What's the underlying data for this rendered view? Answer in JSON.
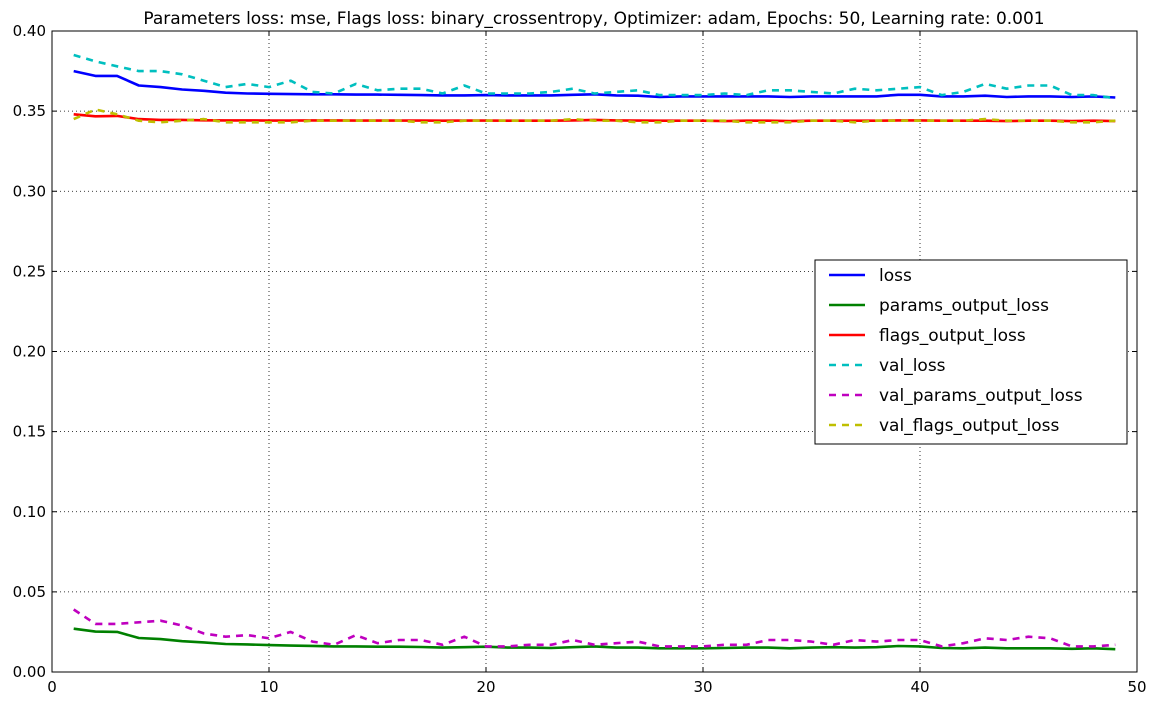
{
  "chart_data": {
    "type": "line",
    "title": "Parameters loss: mse, Flags loss: binary_crossentropy, Optimizer: adam, Epochs: 50, Learning rate: 0.001",
    "xlabel": "",
    "ylabel": "",
    "xlim": [
      0,
      50
    ],
    "ylim": [
      0.0,
      0.4
    ],
    "xticks": [
      "0",
      "10",
      "20",
      "30",
      "40",
      "50"
    ],
    "yticks": [
      "0.00",
      "0.05",
      "0.10",
      "0.15",
      "0.20",
      "0.25",
      "0.30",
      "0.35",
      "0.40"
    ],
    "grid": true,
    "legend_position": "center-right",
    "x": [
      1,
      2,
      3,
      4,
      5,
      6,
      7,
      8,
      9,
      10,
      11,
      12,
      13,
      14,
      15,
      16,
      17,
      18,
      19,
      20,
      21,
      22,
      23,
      24,
      25,
      26,
      27,
      28,
      29,
      30,
      31,
      32,
      33,
      34,
      35,
      36,
      37,
      38,
      39,
      40,
      41,
      42,
      43,
      44,
      45,
      46,
      47,
      48,
      49
    ],
    "series": [
      {
        "name": "loss",
        "color": "#0000ff",
        "style": "solid",
        "values": [
          0.375,
          0.372,
          0.372,
          0.366,
          0.365,
          0.3635,
          0.3627,
          0.3615,
          0.361,
          0.3608,
          0.3606,
          0.3605,
          0.3605,
          0.3603,
          0.3603,
          0.3602,
          0.36,
          0.3598,
          0.3598,
          0.36,
          0.3598,
          0.3598,
          0.3598,
          0.3602,
          0.3605,
          0.3598,
          0.3596,
          0.3588,
          0.3592,
          0.3592,
          0.3592,
          0.3592,
          0.3592,
          0.3588,
          0.3592,
          0.3592,
          0.3592,
          0.3592,
          0.3602,
          0.3602,
          0.3592,
          0.3592,
          0.3596,
          0.3588,
          0.3592,
          0.3592,
          0.3588,
          0.3592,
          0.3585
        ]
      },
      {
        "name": "params_output_loss",
        "color": "#008000",
        "style": "solid",
        "values": [
          0.027,
          0.0252,
          0.025,
          0.0212,
          0.0205,
          0.0192,
          0.0185,
          0.0175,
          0.0172,
          0.0168,
          0.0165,
          0.0163,
          0.016,
          0.016,
          0.0158,
          0.0158,
          0.0156,
          0.0152,
          0.0155,
          0.0158,
          0.0152,
          0.0152,
          0.015,
          0.0155,
          0.016,
          0.0152,
          0.0152,
          0.0148,
          0.0148,
          0.0148,
          0.015,
          0.0152,
          0.0152,
          0.0148,
          0.0152,
          0.0155,
          0.0152,
          0.0155,
          0.0162,
          0.016,
          0.015,
          0.0148,
          0.0152,
          0.0148,
          0.0148,
          0.0148,
          0.0145,
          0.0148,
          0.0142
        ]
      },
      {
        "name": "flags_output_loss",
        "color": "#ff0000",
        "style": "solid",
        "values": [
          0.348,
          0.3468,
          0.347,
          0.345,
          0.3445,
          0.3445,
          0.3443,
          0.3442,
          0.3442,
          0.3441,
          0.3441,
          0.3442,
          0.3442,
          0.3441,
          0.3441,
          0.3441,
          0.3441,
          0.344,
          0.3441,
          0.3441,
          0.344,
          0.344,
          0.344,
          0.3442,
          0.3445,
          0.3442,
          0.3441,
          0.344,
          0.344,
          0.344,
          0.3438,
          0.344,
          0.344,
          0.3438,
          0.344,
          0.344,
          0.344,
          0.344,
          0.3442,
          0.3442,
          0.344,
          0.344,
          0.344,
          0.3438,
          0.344,
          0.344,
          0.3438,
          0.344,
          0.3438
        ]
      },
      {
        "name": "val_loss",
        "color": "#00bfbf",
        "style": "dashed",
        "values": [
          0.385,
          0.381,
          0.378,
          0.375,
          0.375,
          0.373,
          0.369,
          0.365,
          0.367,
          0.365,
          0.369,
          0.362,
          0.361,
          0.367,
          0.363,
          0.364,
          0.364,
          0.361,
          0.366,
          0.361,
          0.361,
          0.361,
          0.362,
          0.364,
          0.361,
          0.362,
          0.363,
          0.36,
          0.36,
          0.36,
          0.361,
          0.36,
          0.363,
          0.363,
          0.362,
          0.361,
          0.364,
          0.363,
          0.364,
          0.365,
          0.36,
          0.362,
          0.367,
          0.364,
          0.366,
          0.366,
          0.36,
          0.36,
          0.358
        ]
      },
      {
        "name": "val_params_output_loss",
        "color": "#bf00bf",
        "style": "dashed",
        "values": [
          0.039,
          0.03,
          0.03,
          0.031,
          0.032,
          0.029,
          0.024,
          0.022,
          0.023,
          0.021,
          0.025,
          0.019,
          0.017,
          0.023,
          0.018,
          0.02,
          0.02,
          0.017,
          0.022,
          0.016,
          0.016,
          0.017,
          0.017,
          0.02,
          0.017,
          0.018,
          0.019,
          0.016,
          0.016,
          0.016,
          0.017,
          0.017,
          0.02,
          0.02,
          0.019,
          0.017,
          0.02,
          0.019,
          0.02,
          0.02,
          0.016,
          0.018,
          0.021,
          0.02,
          0.022,
          0.021,
          0.016,
          0.016,
          0.017
        ]
      },
      {
        "name": "val_flags_output_loss",
        "color": "#bfbf00",
        "style": "dashed",
        "values": [
          0.345,
          0.351,
          0.348,
          0.344,
          0.343,
          0.344,
          0.345,
          0.343,
          0.343,
          0.343,
          0.343,
          0.344,
          0.344,
          0.344,
          0.344,
          0.344,
          0.343,
          0.343,
          0.344,
          0.344,
          0.344,
          0.344,
          0.344,
          0.345,
          0.344,
          0.344,
          0.343,
          0.343,
          0.344,
          0.344,
          0.344,
          0.343,
          0.343,
          0.343,
          0.344,
          0.344,
          0.343,
          0.344,
          0.344,
          0.344,
          0.344,
          0.344,
          0.345,
          0.344,
          0.344,
          0.344,
          0.343,
          0.343,
          0.344
        ]
      }
    ]
  }
}
